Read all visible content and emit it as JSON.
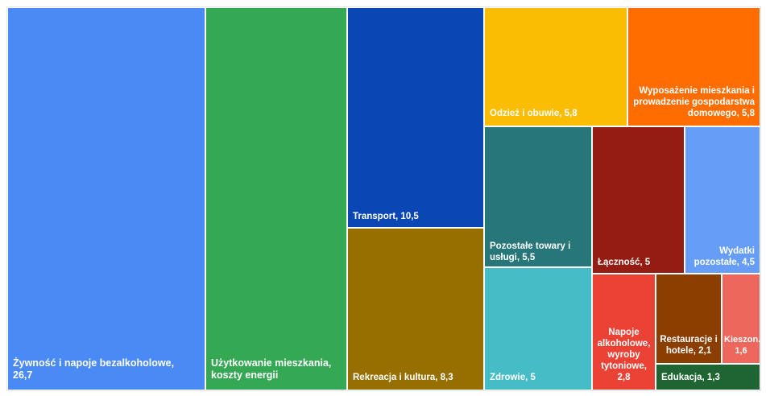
{
  "chart_data": {
    "type": "treemap",
    "items": [
      {
        "label": "Żywność i napoje bezalkoholowe, 26,7",
        "name": "Żywność i napoje bezalkoholowe",
        "value": 26.7,
        "color": "#4a8af4"
      },
      {
        "label": "Użytkowanie mieszkania, koszty energii",
        "name": "Użytkowanie mieszkania, koszty energii",
        "value": null,
        "color": "#34a853"
      },
      {
        "label": "Transport, 10,5",
        "name": "Transport",
        "value": 10.5,
        "color": "#0b47b4"
      },
      {
        "label": "Rekreacja i kultura, 8,3",
        "name": "Rekreacja i kultura",
        "value": 8.3,
        "color": "#976f00"
      },
      {
        "label": "Odzież i obuwie, 5,8",
        "name": "Odzież i obuwie",
        "value": 5.8,
        "color": "#fbbc04"
      },
      {
        "label": "Wyposażenie mieszkania i prowadzenie gospodarstwa domowego, 5,8",
        "name": "Wyposażenie mieszkania i prowadzenie gospodarstwa domowego",
        "value": 5.8,
        "color": "#ff6d01"
      },
      {
        "label": "Pozostałe towary i usługi, 5,5",
        "name": "Pozostałe towary i usługi",
        "value": 5.5,
        "color": "#27777a"
      },
      {
        "label": "Zdrowie, 5",
        "name": "Zdrowie",
        "value": 5,
        "color": "#46bdc6"
      },
      {
        "label": "Łączność, 5",
        "name": "Łączność",
        "value": 5,
        "color": "#941c12"
      },
      {
        "label": "Wydatki pozostałe, 4,5",
        "name": "Wydatki pozostałe",
        "value": 4.5,
        "color": "#669df6"
      },
      {
        "label": "Napoje alkoholowe, wyroby tytoniowe, 2,8",
        "name": "Napoje alkoholowe, wyroby tytoniowe",
        "value": 2.8,
        "color": "#ea4335"
      },
      {
        "label": "Restauracje i hotele, 2,1",
        "name": "Restauracje i hotele",
        "value": 2.1,
        "color": "#8c3e00"
      },
      {
        "label": "Kieszon... 1,6",
        "name": "Kieszon...",
        "value": 1.6,
        "color": "#ee675c"
      },
      {
        "label": "Edukacja, 1,3",
        "name": "Edukacja",
        "value": 1.3,
        "color": "#1e6531"
      }
    ]
  },
  "labels": {
    "t0": [
      "Żywność i napoje bezalkoholowe,",
      "26,7"
    ],
    "t1": [
      "Użytkowanie mieszkania,",
      "koszty energii"
    ],
    "t2": [
      "Transport, 10,5"
    ],
    "t3": [
      "Rekreacja i kultura, 8,3"
    ],
    "t4": [
      "Odzież i obuwie, 5,8"
    ],
    "t5": [
      "Wyposażenie mieszkania i",
      "prowadzenie gospodarstwa",
      "domowego, 5,8"
    ],
    "t6": [
      "Pozostałe towary i",
      "usługi, 5,5"
    ],
    "t7": [
      "Zdrowie, 5"
    ],
    "t8": [
      "Łączność, 5"
    ],
    "t9": [
      "Wydatki",
      "pozostałe, 4,5"
    ],
    "t10": [
      "Napoje",
      "alkoholowe,",
      "wyroby",
      "tytoniowe,",
      "2,8"
    ],
    "t11": [
      "Restauracje i",
      "hotele, 2,1"
    ],
    "t12": [
      "Kieszon...",
      "1,6"
    ],
    "t13": [
      "Edukacja, 1,3"
    ]
  }
}
